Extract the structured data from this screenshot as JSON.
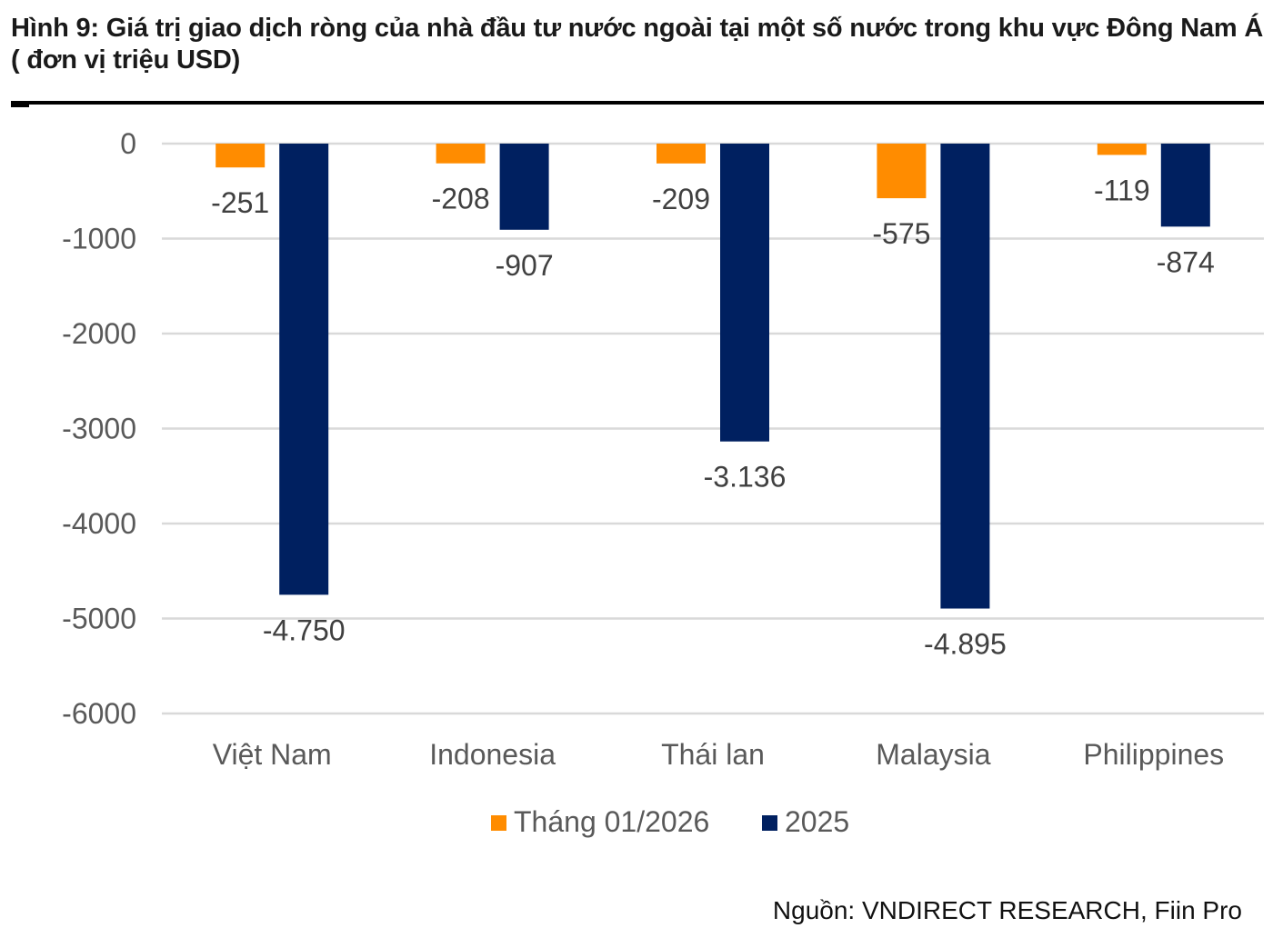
{
  "title": "Hình 9: Giá trị giao dịch ròng của nhà đầu tư nước ngoài tại một số nước trong khu vực Đông Nam Á ( đơn vị triệu USD)",
  "source": "Nguồn: VNDIRECT RESEARCH, Fiin Pro",
  "chart_data": {
    "type": "bar",
    "title": "",
    "xlabel": "",
    "ylabel": "",
    "ylim": [
      -6000,
      0
    ],
    "yticks": [
      0,
      -1000,
      -2000,
      -3000,
      -4000,
      -5000,
      -6000
    ],
    "ytick_labels": [
      "0",
      "-1000",
      "-2000",
      "-3000",
      "-4000",
      "-5000",
      "-6000"
    ],
    "grid": true,
    "legend_position": "bottom",
    "categories": [
      "Việt Nam",
      "Indonesia",
      "Thái lan",
      "Malaysia",
      "Philippines"
    ],
    "series": [
      {
        "name": "Tháng 01/2026",
        "color": "#FF8C00",
        "values": [
          -251,
          -208,
          -209,
          -575,
          -119
        ],
        "labels": [
          "-251",
          "-208",
          "-209",
          "-575",
          "-119"
        ]
      },
      {
        "name": "2025",
        "color": "#002060",
        "values": [
          -4750,
          -907,
          -3136,
          -4895,
          -874
        ],
        "labels": [
          "-4.750",
          "-907",
          "-3.136",
          "-4.895",
          "-874"
        ]
      }
    ]
  }
}
